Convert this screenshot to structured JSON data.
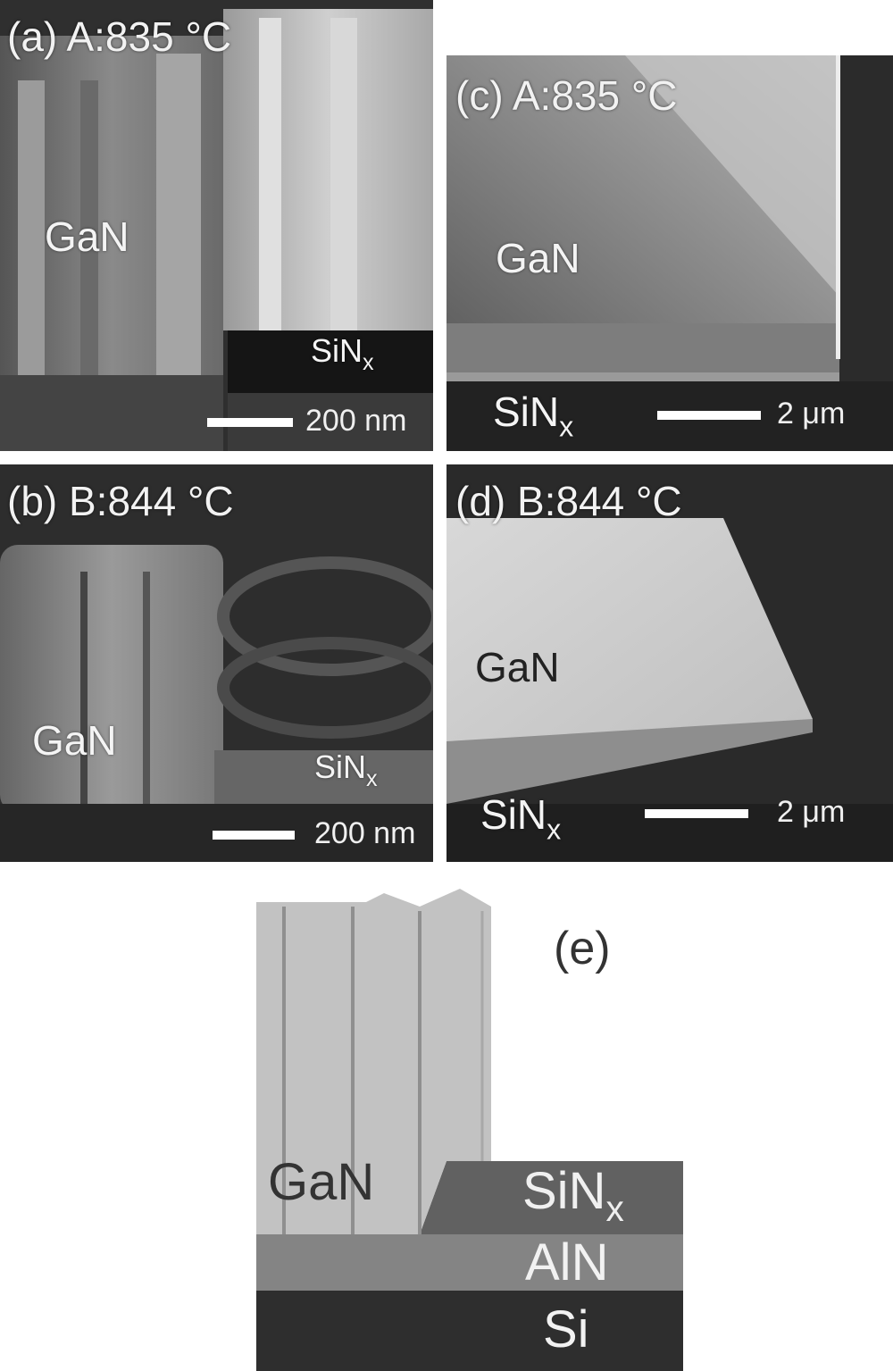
{
  "panels": {
    "a": {
      "label": "(a) A:835 °C",
      "gan": "GaN",
      "sin": "SiN",
      "sin_sub": "x",
      "scale": "200 nm"
    },
    "b": {
      "label": "(b) B:844 °C",
      "gan": "GaN",
      "sin": "SiN",
      "sin_sub": "x",
      "scale": "200 nm"
    },
    "c": {
      "label": "(c) A:835 °C",
      "gan": "GaN",
      "sin": "SiN",
      "sin_sub": "x",
      "scale": "2 μm"
    },
    "d": {
      "label": "(d) B:844 °C",
      "gan": "GaN",
      "sin": "SiN",
      "sin_sub": "x",
      "scale": "2 μm"
    },
    "e": {
      "label": "(e)",
      "gan": "GaN",
      "sin": "SiN",
      "sin_sub": "x",
      "aln": "AlN",
      "si": "Si"
    }
  },
  "colors": {
    "gan_light": "#c2c2c2",
    "sin_dark": "#616161",
    "aln_mid": "#848484",
    "si_dark": "#2e2e2e"
  }
}
